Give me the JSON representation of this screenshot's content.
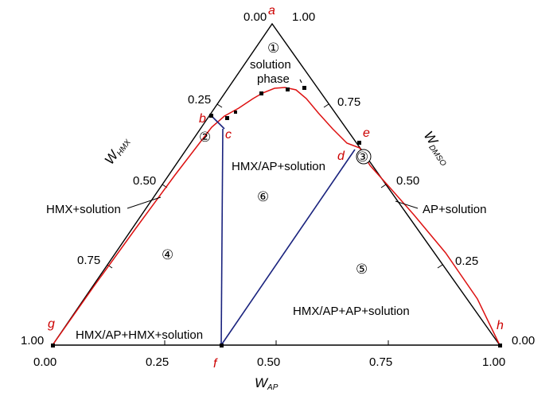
{
  "diagram": {
    "axes": {
      "apex_labels": {
        "top_left": "0.00",
        "top_right": "1.00",
        "bottom_left_left": "1.00",
        "bottom_right_right": "0.00"
      },
      "bottom_ticks": [
        "0.00",
        "0.25",
        "0.50",
        "0.75",
        "1.00"
      ],
      "left_ticks": [
        "0.25",
        "0.50",
        "0.75"
      ],
      "right_ticks": [
        "0.75",
        "0.50",
        "0.25"
      ],
      "x_axis_name": "W",
      "x_axis_sub": "AP",
      "left_axis_name": "W",
      "left_axis_sub": "HMX",
      "right_axis_name": "W",
      "right_axis_sub": "DMSO"
    },
    "points": {
      "a": "a",
      "b": "b",
      "c": "c",
      "d": "d",
      "e": "e",
      "f": "f",
      "g": "g",
      "h": "h"
    },
    "regions": {
      "r1_num": "①",
      "r1_line1": "solution",
      "r1_line2": "phase",
      "r2_num": "②",
      "r3_num": "③",
      "r4_num": "④",
      "r5_num": "⑤",
      "r6_num": "⑥",
      "hmx_ap_solution": "HMX/AP+solution",
      "hmx_solution": "HMX+solution",
      "ap_solution": "AP+solution",
      "hmx_ap_hmx_solution": "HMX/AP+HMX+solution",
      "hmx_ap_ap_solution": "HMX/AP+AP+solution"
    },
    "colors": {
      "frame": "#000000",
      "solubility_curve": "#dd1111",
      "tie_lines": "#1a237e",
      "point_labels": "#cc0000"
    }
  }
}
